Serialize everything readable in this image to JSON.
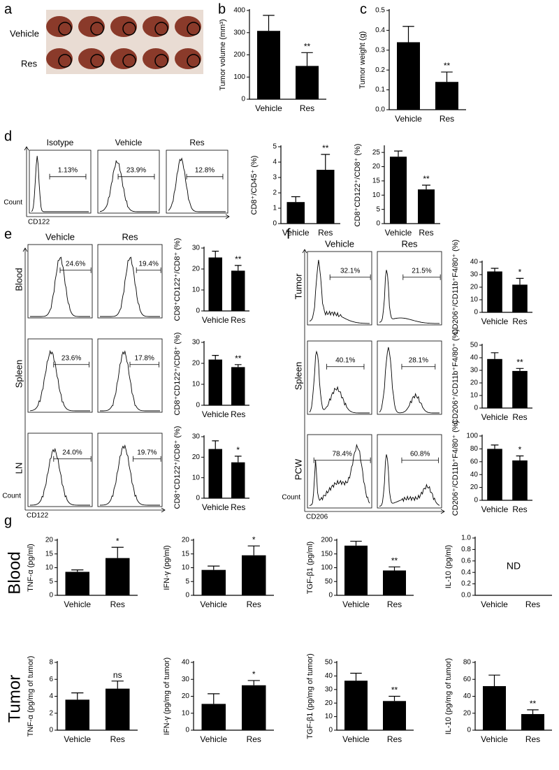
{
  "panels": [
    "a",
    "b",
    "c",
    "d",
    "e",
    "f",
    "g"
  ],
  "photo": {
    "rows": [
      "Vehicle",
      "Res"
    ]
  },
  "flow_d": {
    "titles": [
      "Isotype",
      "Vehicle",
      "Res"
    ],
    "percents": [
      "1.13%",
      "23.9%",
      "12.8%"
    ],
    "y_label": "Count",
    "x_label": "CD122"
  },
  "flow_e": {
    "cols": [
      "Vehicle",
      "Res"
    ],
    "rows": [
      "Blood",
      "Spleen",
      "LN"
    ],
    "percents": [
      [
        "24.6%",
        "19.4%"
      ],
      [
        "23.6%",
        "17.8%"
      ],
      [
        "24.0%",
        "19.7%"
      ]
    ],
    "y_label": "Count",
    "x_label": "CD122"
  },
  "flow_f": {
    "cols": [
      "Vehicle",
      "Res"
    ],
    "rows": [
      "Tumor",
      "Spleen",
      "PCW"
    ],
    "percents": [
      [
        "32.1%",
        "21.5%"
      ],
      [
        "40.1%",
        "28.1%"
      ],
      [
        "78.4%",
        "60.8%"
      ]
    ],
    "y_label": "Count",
    "x_label": "CD206"
  },
  "g_rows": [
    "Blood",
    "Tumor"
  ],
  "chart_data": [
    {
      "type": "bar",
      "ylabel": "Tumor volume (mm³)",
      "categories": [
        "Vehicle",
        "Res"
      ],
      "values": [
        308,
        150
      ],
      "errors": [
        70,
        60
      ],
      "ylim": [
        0,
        400
      ],
      "yticks": [
        0,
        100,
        200,
        300,
        400
      ],
      "annotation": "**",
      "color": "#000000"
    },
    {
      "type": "bar",
      "ylabel": "Tumor weight (g)",
      "categories": [
        "Vehicle",
        "Res"
      ],
      "values": [
        0.34,
        0.14
      ],
      "errors": [
        0.08,
        0.05
      ],
      "ylim": [
        0,
        0.5
      ],
      "yticks": [
        {
          "value": 0,
          "label": "0.0"
        },
        0.1,
        0.2,
        0.3,
        0.4,
        0.5
      ],
      "annotation": "**",
      "color": "#000000"
    },
    {
      "type": "bar",
      "ylabel": "CD8⁺/CD45⁺ (%)",
      "categories": [
        "Vehicle",
        "Res"
      ],
      "values": [
        1.4,
        3.5
      ],
      "errors": [
        0.35,
        1.0
      ],
      "ylim": [
        0,
        5
      ],
      "yticks": [
        0,
        1,
        2,
        3,
        4,
        5
      ],
      "annotation": "**",
      "color": "#000000"
    },
    {
      "type": "bar",
      "ylabel": "CD8⁺CD122⁺/CD8⁺ (%)",
      "categories": [
        "Vehicle",
        "Res"
      ],
      "values": [
        23.5,
        12
      ],
      "errors": [
        2,
        1.5
      ],
      "ylim": [
        0,
        27
      ],
      "yticks": [
        0,
        5,
        10,
        15,
        20,
        25
      ],
      "annotation": "**",
      "color": "#000000"
    },
    {
      "type": "bar",
      "ylabel": "CD8⁺CD122⁺/CD8⁺ (%)",
      "categories": [
        "Vehicle",
        "Res"
      ],
      "values": [
        25.5,
        19.2
      ],
      "errors": [
        3,
        2.5
      ],
      "ylim": [
        0,
        30
      ],
      "yticks": [
        0,
        10,
        20,
        30
      ],
      "annotation": "**",
      "color": "#000000"
    },
    {
      "type": "bar",
      "ylabel": "CD8⁺CD122⁺/CD8⁺ (%)",
      "categories": [
        "Vehicle",
        "Res"
      ],
      "values": [
        21.8,
        18.2
      ],
      "errors": [
        2,
        1.2
      ],
      "ylim": [
        0,
        30
      ],
      "yticks": [
        0,
        10,
        20,
        30
      ],
      "annotation": "**",
      "color": "#000000"
    },
    {
      "type": "bar",
      "ylabel": "CD8⁺CD122⁺/CD8⁺ (%)",
      "categories": [
        "Vehicle",
        "Res"
      ],
      "values": [
        24,
        17.5
      ],
      "errors": [
        4,
        3
      ],
      "ylim": [
        0,
        30
      ],
      "yticks": [
        0,
        10,
        20,
        30
      ],
      "annotation": "*",
      "color": "#000000"
    },
    {
      "type": "bar",
      "ylabel": "CD206⁺/CD11b⁺F4/80⁺ (%)",
      "categories": [
        "Vehicle",
        "Res"
      ],
      "values": [
        32.5,
        22
      ],
      "errors": [
        2.5,
        5
      ],
      "ylim": [
        0,
        40
      ],
      "yticks": [
        0,
        10,
        20,
        30,
        40
      ],
      "annotation": "*",
      "color": "#000000"
    },
    {
      "type": "bar",
      "ylabel": "CD206⁺/CD11b⁺F4/80⁺ (%)",
      "categories": [
        "Vehicle",
        "Res"
      ],
      "values": [
        39,
        29.5
      ],
      "errors": [
        5,
        2
      ],
      "ylim": [
        0,
        50
      ],
      "yticks": [
        0,
        10,
        20,
        30,
        40,
        50
      ],
      "annotation": "**",
      "color": "#000000"
    },
    {
      "type": "bar",
      "ylabel": "CD206⁺/CD11b⁺F4/80⁺ (%)",
      "categories": [
        "Vehicle",
        "Res"
      ],
      "values": [
        80,
        62
      ],
      "errors": [
        6,
        7
      ],
      "ylim": [
        0,
        100
      ],
      "yticks": [
        0,
        20,
        40,
        60,
        80,
        100
      ],
      "annotation": "*",
      "color": "#000000"
    },
    {
      "type": "bar",
      "ylabel": "TNF-α (pg/ml)",
      "categories": [
        "Vehicle",
        "Res"
      ],
      "values": [
        8.5,
        13.5
      ],
      "errors": [
        0.7,
        3.9
      ],
      "ylim": [
        0,
        20
      ],
      "yticks": [
        0,
        5,
        10,
        15,
        20
      ],
      "annotation": "*",
      "color": "#000000"
    },
    {
      "type": "bar",
      "ylabel": "IFN-γ (pg/ml)",
      "categories": [
        "Vehicle",
        "Res"
      ],
      "values": [
        9.2,
        14.5
      ],
      "errors": [
        1.4,
        3.4
      ],
      "ylim": [
        0,
        20
      ],
      "yticks": [
        0,
        5,
        10,
        15,
        20
      ],
      "annotation": "*",
      "color": "#000000"
    },
    {
      "type": "bar",
      "ylabel": "TGF-β1 (pg/ml)",
      "categories": [
        "Vehicle",
        "Res"
      ],
      "values": [
        180,
        90
      ],
      "errors": [
        16,
        13
      ],
      "ylim": [
        0,
        200
      ],
      "yticks": [
        0,
        50,
        100,
        150,
        200
      ],
      "annotation": "**",
      "color": "#000000"
    },
    {
      "type": "bar",
      "ylabel": "IL-10 (pg/ml)",
      "categories": [
        "Vehicle",
        "Res"
      ],
      "values": [
        null,
        null
      ],
      "errors": [
        null,
        null
      ],
      "ylim": [
        0,
        1
      ],
      "yticks": [
        {
          "value": 0,
          "label": "0.0"
        },
        0.2,
        0.4,
        0.6,
        0.8,
        {
          "value": 1,
          "label": "1.0"
        }
      ],
      "annotation": "ND",
      "color": "#000000"
    },
    {
      "type": "bar",
      "ylabel": "TNF-α (pg/mg of tumor)",
      "categories": [
        "Vehicle",
        "Res"
      ],
      "values": [
        3.6,
        4.9
      ],
      "errors": [
        0.8,
        0.9
      ],
      "ylim": [
        0,
        8
      ],
      "yticks": [
        0,
        2,
        4,
        6,
        8
      ],
      "annotation": "ns",
      "color": "#000000"
    },
    {
      "type": "bar",
      "ylabel": "IFN-γ (pg/mg of tumor)",
      "categories": [
        "Vehicle",
        "Res"
      ],
      "values": [
        15.5,
        26.5
      ],
      "errors": [
        6,
        2.8
      ],
      "ylim": [
        0,
        40
      ],
      "yticks": [
        0,
        10,
        20,
        30,
        40
      ],
      "annotation": "*",
      "color": "#000000"
    },
    {
      "type": "bar",
      "ylabel": "TGF-β1 (pg/mg of tumor)",
      "categories": [
        "Vehicle",
        "Res"
      ],
      "values": [
        36.5,
        21.5
      ],
      "errors": [
        5.5,
        3.5
      ],
      "ylim": [
        0,
        50
      ],
      "yticks": [
        0,
        10,
        20,
        30,
        40,
        50
      ],
      "annotation": "**",
      "color": "#000000"
    },
    {
      "type": "bar",
      "ylabel": "IL-10 (pg/mg of tumor)",
      "categories": [
        "Vehicle",
        "Res"
      ],
      "values": [
        52,
        19
      ],
      "errors": [
        13,
        5
      ],
      "ylim": [
        0,
        80
      ],
      "yticks": [
        0,
        20,
        40,
        60,
        80
      ],
      "annotation": "**",
      "color": "#000000"
    }
  ]
}
